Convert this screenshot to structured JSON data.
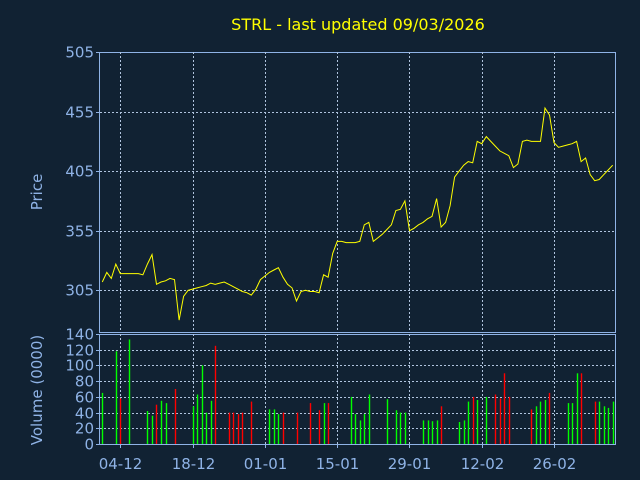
{
  "chart_data": [
    {
      "type": "line",
      "title": "STRL - last updated 09/03/2026",
      "xlabel": "",
      "ylabel": "Price",
      "ylim": [
        270,
        505
      ],
      "yticks": [
        305,
        355,
        405,
        455,
        505
      ],
      "grid": true,
      "line_color": "#ffff00",
      "values": [
        312,
        320,
        315,
        327,
        319,
        319,
        319,
        319,
        319,
        318,
        327,
        335,
        310,
        312,
        313,
        315,
        314,
        280,
        300,
        305,
        306,
        307,
        308,
        309,
        311,
        310,
        311,
        312,
        310,
        308,
        306,
        304,
        303,
        301,
        306,
        314,
        317,
        320,
        322,
        324,
        316,
        310,
        307,
        296,
        304,
        305,
        304,
        304,
        303,
        318,
        316,
        336,
        346,
        346,
        345,
        345,
        345,
        346,
        360,
        362,
        346,
        349,
        352,
        356,
        360,
        372,
        373,
        380,
        355,
        357,
        360,
        362,
        365,
        367,
        382,
        358,
        362,
        376,
        400,
        405,
        410,
        413,
        412,
        430,
        428,
        434,
        430,
        426,
        422,
        420,
        418,
        408,
        411,
        430,
        431,
        430,
        430,
        430,
        458,
        452,
        429,
        425,
        426,
        427,
        428,
        430,
        413,
        416,
        402,
        397,
        398,
        402,
        406,
        410
      ]
    },
    {
      "type": "bar",
      "xlabel": "",
      "ylabel": "Volume (0000)",
      "ylim": [
        0,
        140
      ],
      "yticks": [
        0,
        20,
        40,
        60,
        80,
        100,
        120,
        140
      ],
      "grid": true,
      "colors": {
        "up": "#00ff00",
        "down": "#ff0000"
      },
      "x_tick_labels": [
        "04-12",
        "18-12",
        "01-01",
        "15-01",
        "29-01",
        "12-02",
        "26-02"
      ],
      "x_tick_indices": [
        4,
        20,
        36,
        52,
        68,
        84,
        100
      ],
      "volume_values": [
        65,
        0,
        0,
        118,
        58,
        0,
        133,
        0,
        0,
        0,
        42,
        36,
        50,
        55,
        52,
        0,
        70,
        0,
        0,
        0,
        48,
        63,
        100,
        40,
        55,
        125,
        0,
        0,
        40,
        40,
        38,
        40,
        0,
        54,
        0,
        0,
        0,
        44,
        44,
        38,
        40,
        0,
        0,
        40,
        0,
        0,
        52,
        0,
        43,
        52,
        52,
        0,
        0,
        0,
        0,
        60,
        38,
        30,
        38,
        63,
        0,
        0,
        0,
        57,
        0,
        43,
        40,
        40,
        0,
        0,
        0,
        30,
        30,
        29,
        30,
        48,
        0,
        0,
        0,
        28,
        30,
        54,
        60,
        56,
        0,
        60,
        0,
        63,
        58,
        90,
        60,
        0,
        0,
        0,
        0,
        44,
        48,
        54,
        56,
        65,
        0,
        0,
        0,
        52,
        52,
        90,
        90,
        0,
        0,
        54,
        54,
        48,
        46,
        54
      ]
    }
  ]
}
